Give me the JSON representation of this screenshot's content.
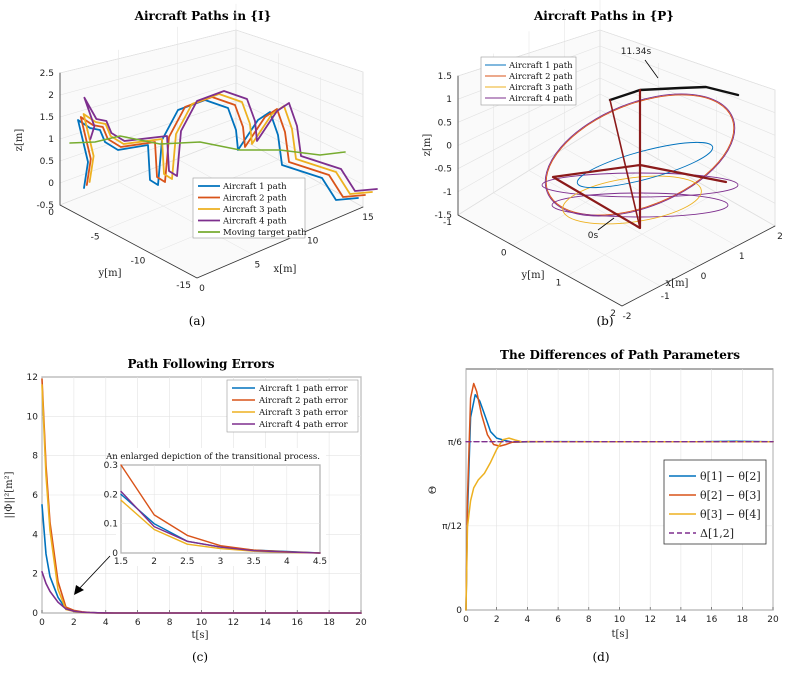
{
  "captions": [
    "(a)",
    "(b)",
    "(c)",
    "(d)"
  ],
  "colors": {
    "c1": "#0072BD",
    "c2": "#D95319",
    "c3": "#EDB120",
    "c4": "#7E2F8E",
    "c5": "#77AC30",
    "dark": "#8B1A1A"
  },
  "chart_data": [
    {
      "type": "line",
      "title": "Aircraft Paths in {I}",
      "xlabel": "x[m]",
      "ylabel": "y[m]",
      "zlabel": "z[m]",
      "x_ticks": [
        "0",
        "5",
        "10",
        "15"
      ],
      "y_ticks": [
        "0",
        "-5",
        "-10",
        "-15"
      ],
      "z_ticks": [
        "-0.5",
        "0",
        "0.5",
        "1",
        "1.5",
        "2",
        "2.5"
      ],
      "xlim": [
        0,
        15
      ],
      "ylim": [
        -15,
        0
      ],
      "zlim": [
        -0.5,
        2.5
      ],
      "grid": true,
      "legend_position": "bottom-right",
      "series": [
        {
          "name": "Aircraft 1 path"
        },
        {
          "name": "Aircraft 2 path"
        },
        {
          "name": "Aircraft 3 path"
        },
        {
          "name": "Aircraft 4 path"
        },
        {
          "name": "Moving target path"
        }
      ]
    },
    {
      "type": "line",
      "title": "Aircraft Paths in {P}",
      "xlabel": "x[m]",
      "ylabel": "y[m]",
      "zlabel": "z[m]",
      "x_ticks": [
        "-2",
        "-1",
        "0",
        "1",
        "2"
      ],
      "y_ticks": [
        "-1",
        "0",
        "1",
        "2"
      ],
      "z_ticks": [
        "-1.5",
        "-1",
        "-0.5",
        "0",
        "0.5",
        "1",
        "1.5"
      ],
      "xlim": [
        -2,
        2
      ],
      "ylim": [
        -1,
        2
      ],
      "zlim": [
        -1.5,
        1.5
      ],
      "grid": true,
      "legend_position": "top-left",
      "annotations": [
        "11.34s",
        "0s"
      ],
      "series": [
        {
          "name": "Aircraft 1 path"
        },
        {
          "name": "Aircraft 2 path"
        },
        {
          "name": "Aircraft 3 path"
        },
        {
          "name": "Aircraft 4 path"
        }
      ]
    },
    {
      "type": "line",
      "title": "Path Following Errors",
      "xlabel": "t[s]",
      "ylabel": "||Φ||²[m²]",
      "xlim": [
        0,
        20
      ],
      "ylim": [
        0,
        12
      ],
      "x_ticks": [
        0,
        2,
        4,
        6,
        8,
        10,
        12,
        14,
        16,
        18,
        20
      ],
      "y_ticks": [
        0,
        2,
        4,
        6,
        8,
        10,
        12
      ],
      "grid": true,
      "legend_position": "top-right",
      "series": [
        {
          "name": "Aircraft 1 path error",
          "x": [
            0,
            0.25,
            0.5,
            1,
            1.5,
            2,
            2.5,
            3,
            3.5,
            4,
            4.5,
            20
          ],
          "y": [
            5.5,
            3.0,
            1.85,
            0.8,
            0.2,
            0.1,
            0.04,
            0.02,
            0.01,
            0.005,
            0,
            0
          ]
        },
        {
          "name": "Aircraft 2 path error",
          "x": [
            0,
            0.25,
            0.5,
            1,
            1.5,
            2,
            2.5,
            3,
            3.5,
            4,
            4.5,
            20
          ],
          "y": [
            11.9,
            7.5,
            4.6,
            1.6,
            0.3,
            0.13,
            0.06,
            0.025,
            0.01,
            0.004,
            0,
            0
          ]
        },
        {
          "name": "Aircraft 3 path error",
          "x": [
            0,
            0.25,
            0.5,
            1,
            1.5,
            2,
            2.5,
            3,
            3.5,
            4,
            4.5,
            20
          ],
          "y": [
            11.6,
            7.0,
            4.2,
            1.2,
            0.18,
            0.08,
            0.03,
            0.015,
            0.006,
            0.002,
            0,
            0
          ]
        },
        {
          "name": "Aircraft 4 path error",
          "x": [
            0,
            0.25,
            0.5,
            1,
            1.5,
            2,
            2.5,
            3,
            3.5,
            4,
            4.5,
            20
          ],
          "y": [
            2.1,
            1.5,
            1.1,
            0.55,
            0.21,
            0.09,
            0.04,
            0.02,
            0.008,
            0.003,
            0,
            0
          ]
        }
      ],
      "inset": {
        "title": "An enlarged depiction of the transitional process.",
        "xlim": [
          1.5,
          4.5
        ],
        "ylim": [
          0,
          0.3
        ],
        "x_ticks": [
          1.5,
          2,
          2.5,
          3,
          3.5,
          4,
          4.5
        ],
        "y_ticks": [
          0,
          0.1,
          0.2,
          0.3
        ]
      }
    },
    {
      "type": "line",
      "title": "The Differences of Path Parameters",
      "xlabel": "t[s]",
      "ylabel": "Θ",
      "xlim": [
        0,
        20
      ],
      "x_ticks": [
        0,
        2,
        4,
        6,
        8,
        10,
        12,
        14,
        16,
        18,
        20
      ],
      "y_ticks": [
        "0",
        "π/12",
        "π/6"
      ],
      "grid": true,
      "legend_position": "center-right",
      "series": [
        {
          "name": "θ[1] − θ[2]",
          "x": [
            0,
            0.1,
            0.3,
            0.6,
            0.9,
            1.2,
            1.6,
            2.0,
            2.5,
            3.0,
            4.0,
            6,
            9,
            12,
            15,
            17.5,
            20
          ],
          "y": [
            0,
            0.3,
            0.6,
            0.67,
            0.65,
            0.61,
            0.555,
            0.535,
            0.528,
            0.5225,
            0.523,
            0.524,
            0.5236,
            0.5236,
            0.5236,
            0.525,
            0.5236
          ]
        },
        {
          "name": "θ[2] − θ[3]",
          "x": [
            0,
            0.1,
            0.3,
            0.5,
            0.7,
            1.0,
            1.4,
            1.8,
            2.2,
            2.6,
            3.0,
            4.0,
            6,
            9,
            12,
            15,
            20
          ],
          "y": [
            0,
            0.35,
            0.66,
            0.705,
            0.68,
            0.61,
            0.545,
            0.515,
            0.51,
            0.515,
            0.522,
            0.524,
            0.5236,
            0.5236,
            0.5236,
            0.5236,
            0.5236
          ]
        },
        {
          "name": "θ[3] − θ[4]",
          "x": [
            0,
            0.1,
            0.3,
            0.5,
            0.8,
            1.2,
            1.6,
            2.0,
            2.4,
            2.8,
            3.2,
            3.6,
            4.0,
            5,
            8,
            12,
            20
          ],
          "y": [
            0,
            0.26,
            0.34,
            0.38,
            0.405,
            0.425,
            0.46,
            0.5,
            0.53,
            0.535,
            0.529,
            0.524,
            0.5236,
            0.5236,
            0.5236,
            0.5236,
            0.5236
          ]
        },
        {
          "name": "Δ[1,2]",
          "x": [
            0,
            20
          ],
          "y": [
            0.5236,
            0.5236
          ],
          "style": "dashed"
        }
      ]
    }
  ]
}
